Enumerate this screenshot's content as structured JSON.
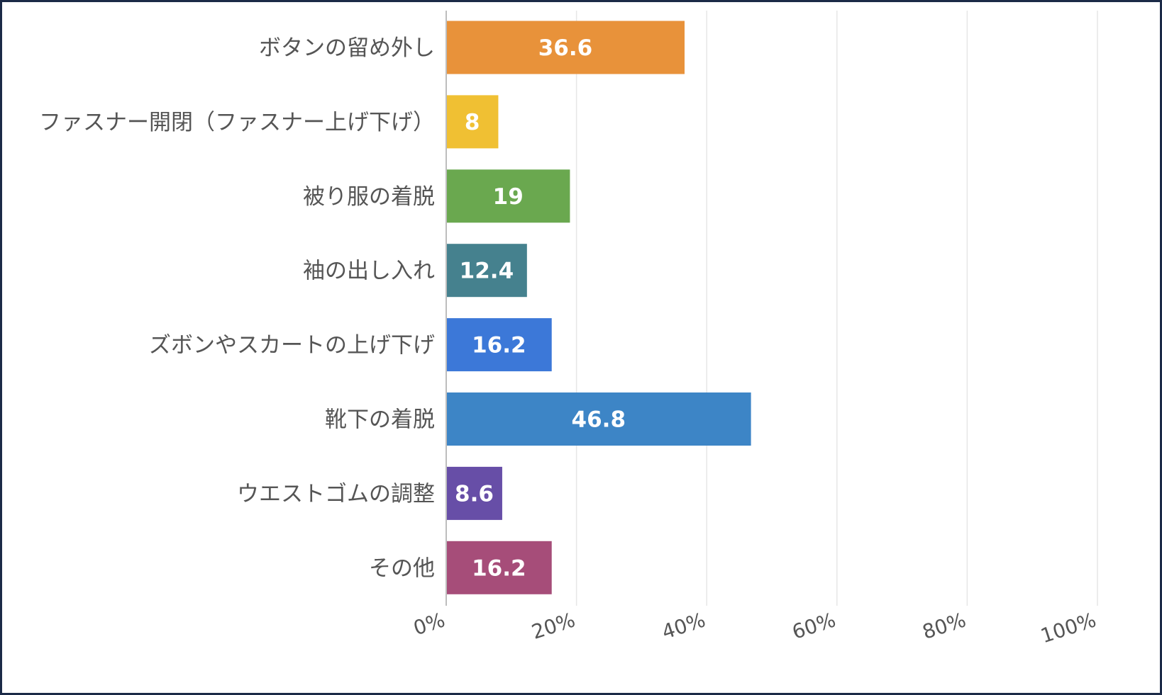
{
  "chart_data": {
    "type": "bar",
    "orientation": "horizontal",
    "title": "",
    "xlabel": "",
    "ylabel": "",
    "xlim": [
      0,
      100
    ],
    "grid": true,
    "legend": "none",
    "categories": [
      "ボタンの留め外し",
      "ファスナー開閉（ファスナー上げ下げ）",
      "被り服の着脱",
      "袖の出し入れ",
      "ズボンやスカートの上げ下げ",
      "靴下の着脱",
      "ウエストゴムの調整",
      "その他"
    ],
    "values": [
      36.6,
      8,
      19,
      12.4,
      16.2,
      46.8,
      8.6,
      16.2
    ],
    "value_labels": [
      "36.6",
      "8",
      "19",
      "12.4",
      "16.2",
      "46.8",
      "8.6",
      "16.2"
    ],
    "colors": [
      "#e8923a",
      "#f0c033",
      "#6aa84f",
      "#45818e",
      "#3c78d8",
      "#3d85c6",
      "#674ea7",
      "#a64d79"
    ],
    "ticks": [
      0,
      20,
      40,
      60,
      80,
      100
    ],
    "tick_labels": [
      "0%",
      "20%",
      "40%",
      "60%",
      "80%",
      "100%"
    ]
  }
}
